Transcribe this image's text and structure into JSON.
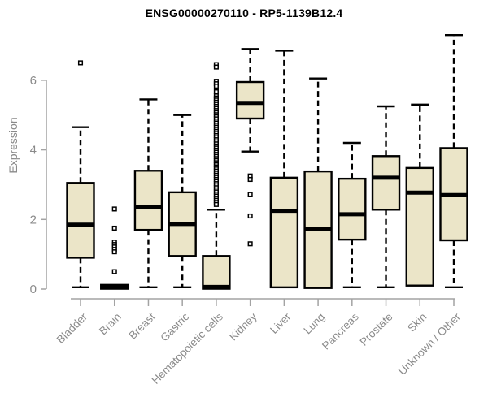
{
  "chart_data": {
    "type": "boxplot",
    "title": "ENSG00000270110 - RP5-1139B12.4",
    "ylabel": "Expression",
    "xlabel": "",
    "ylim": [
      0,
      7.4
    ],
    "yticks": [
      0,
      2,
      4,
      6
    ],
    "grid": false,
    "legend": null,
    "colors": {
      "box_fill": "#ebe5c8",
      "box_stroke": "#000000",
      "median": "#000000",
      "whisker": "#000000",
      "outlier_stroke": "#000000",
      "axis": "#a3a3a3",
      "tick_label": "#8a8a8a",
      "title": "#000000",
      "background": "#ffffff"
    },
    "categories": [
      "Bladder",
      "Brain",
      "Breast",
      "Gastric",
      "Hematopoietic cells",
      "Kidney",
      "Liver",
      "Lung",
      "Pancreas",
      "Prostate",
      "Skin",
      "Unknown / Other"
    ],
    "boxes": [
      {
        "category": "Bladder",
        "whisker_low": 0.05,
        "q1": 0.9,
        "median": 1.85,
        "q3": 3.05,
        "whisker_high": 4.65,
        "outliers": [
          6.5
        ]
      },
      {
        "category": "Brain",
        "whisker_low": 0.01,
        "q1": 0.01,
        "median": 0.06,
        "q3": 0.12,
        "whisker_high": 0.12,
        "outliers": [
          2.3,
          1.75,
          1.35,
          1.28,
          1.21,
          1.14,
          1.07,
          0.5
        ]
      },
      {
        "category": "Breast",
        "whisker_low": 0.05,
        "q1": 1.7,
        "median": 2.35,
        "q3": 3.4,
        "whisker_high": 5.45,
        "outliers": []
      },
      {
        "category": "Gastric",
        "whisker_low": 0.05,
        "q1": 0.95,
        "median": 1.87,
        "q3": 2.78,
        "whisker_high": 5.0,
        "outliers": []
      },
      {
        "category": "Hematopoietic cells",
        "whisker_low": 0.01,
        "q1": 0.01,
        "median": 0.06,
        "q3": 0.95,
        "whisker_high": 2.28,
        "outliers": [
          6.45,
          6.38,
          5.97,
          5.9,
          5.83,
          5.67,
          5.55,
          5.49,
          5.43,
          5.37,
          5.31,
          5.25,
          5.19,
          5.13,
          5.07,
          5.01,
          4.95,
          4.89,
          4.83,
          4.77,
          4.71,
          4.65,
          4.59,
          4.53,
          4.47,
          4.41,
          4.35,
          4.29,
          4.23,
          4.17,
          4.11,
          4.05,
          3.99,
          3.93,
          3.87,
          3.81,
          3.75,
          3.69,
          3.63,
          3.57,
          3.51,
          3.45,
          3.39,
          3.33,
          3.27,
          3.21,
          3.15,
          3.09,
          3.03,
          2.97,
          2.91,
          2.85,
          2.79,
          2.73,
          2.67,
          2.61,
          2.55,
          2.49,
          2.43
        ]
      },
      {
        "category": "Kidney",
        "whisker_low": 3.95,
        "q1": 4.9,
        "median": 5.35,
        "q3": 5.95,
        "whisker_high": 6.9,
        "outliers": [
          3.25,
          3.15,
          2.72,
          2.1,
          1.3
        ]
      },
      {
        "category": "Liver",
        "whisker_low": 0.05,
        "q1": 0.05,
        "median": 2.25,
        "q3": 3.2,
        "whisker_high": 6.85,
        "outliers": []
      },
      {
        "category": "Lung",
        "whisker_low": 0.03,
        "q1": 0.03,
        "median": 1.72,
        "q3": 3.38,
        "whisker_high": 6.05,
        "outliers": []
      },
      {
        "category": "Pancreas",
        "whisker_low": 0.05,
        "q1": 1.42,
        "median": 2.15,
        "q3": 3.17,
        "whisker_high": 4.2,
        "outliers": []
      },
      {
        "category": "Prostate",
        "whisker_low": 0.05,
        "q1": 2.28,
        "median": 3.2,
        "q3": 3.82,
        "whisker_high": 5.25,
        "outliers": []
      },
      {
        "category": "Skin",
        "whisker_low": 0.1,
        "q1": 0.1,
        "median": 2.77,
        "q3": 3.48,
        "whisker_high": 5.3,
        "outliers": []
      },
      {
        "category": "Unknown / Other",
        "whisker_low": 0.05,
        "q1": 1.4,
        "median": 2.7,
        "q3": 4.05,
        "whisker_high": 7.3,
        "outliers": []
      }
    ]
  }
}
